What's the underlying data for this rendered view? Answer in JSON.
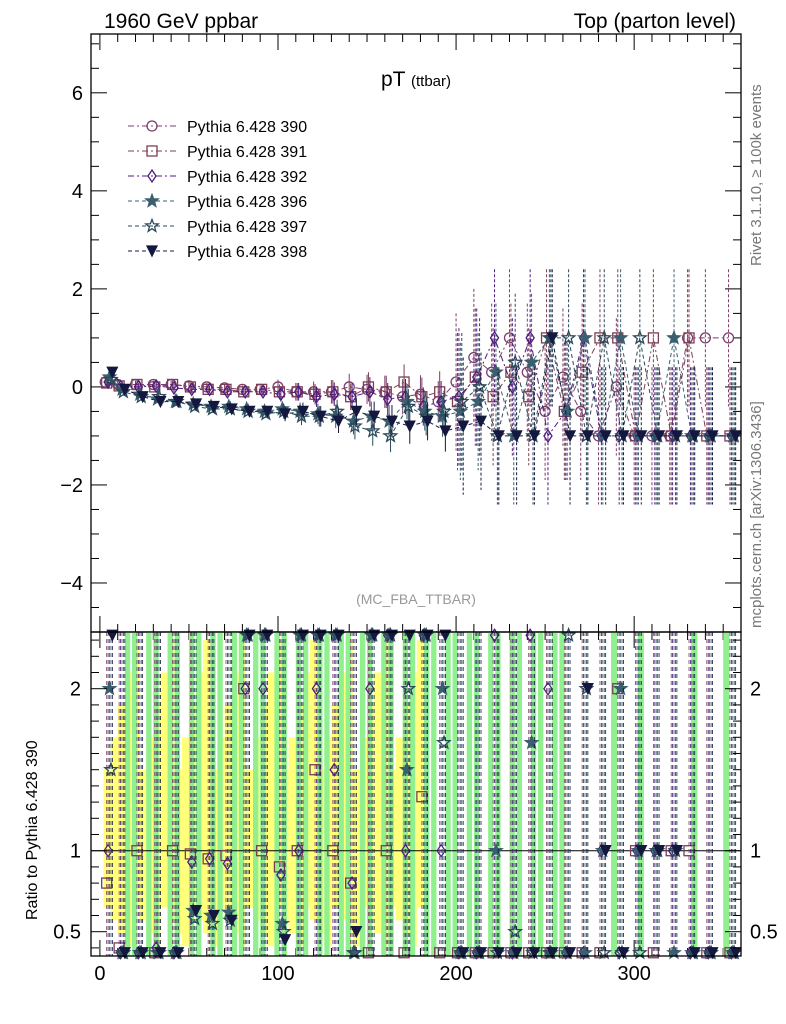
{
  "header": {
    "left": "1960 GeV ppbar",
    "right": "Top (parton level)"
  },
  "side_labels": {
    "rivet": "Rivet 3.1.10, ≥ 100k events",
    "mcplots": "mcplots.cern.ch [arXiv:1306.3436]"
  },
  "chart_data": {
    "type": "scatter",
    "title": "pT",
    "title_sub": "(ttbar)",
    "annotation": "(MC_FBA_TTBAR)",
    "xlabel": "",
    "ylabel": "",
    "xlim": [
      -5,
      360
    ],
    "ylim": [
      -5,
      7.2
    ],
    "x_ticks": [
      0,
      100,
      200,
      300
    ],
    "y_ticks": [
      -4,
      -2,
      0,
      2,
      4,
      6
    ],
    "legend_placement": "top-left",
    "series": [
      {
        "name": "Pythia 6.428 390",
        "color": "#7d3e6e",
        "marker": "circle-open",
        "line": "dash-dot",
        "x": [
          3,
          10,
          20,
          30,
          40,
          50,
          60,
          70,
          80,
          90,
          100,
          110,
          120,
          130,
          140,
          150,
          160,
          170,
          180,
          190,
          200,
          210,
          220,
          230,
          240,
          250,
          260,
          270,
          280,
          290,
          300,
          310,
          320,
          330,
          340,
          353
        ],
        "y": [
          0.1,
          0.05,
          0.05,
          0.05,
          0.05,
          0.02,
          0.0,
          -0.02,
          -0.05,
          -0.05,
          0.0,
          -0.1,
          -0.1,
          -0.1,
          0.0,
          -0.05,
          -0.1,
          -0.2,
          -0.15,
          -0.3,
          0.1,
          0.6,
          0.3,
          1.0,
          0.3,
          -0.5,
          0.2,
          -0.5,
          -1.0,
          0.0,
          -1.0,
          -1.0,
          -1.0,
          1.0,
          1.0,
          1.0
        ]
      },
      {
        "name": "Pythia 6.428 391",
        "color": "#7d3e54",
        "marker": "square-open",
        "line": "dash-dot",
        "x": [
          3,
          10,
          20,
          30,
          40,
          50,
          60,
          70,
          80,
          90,
          100,
          110,
          120,
          130,
          140,
          150,
          160,
          170,
          180,
          190,
          200,
          210,
          220,
          230,
          240,
          250,
          260,
          270,
          280,
          290,
          300,
          310,
          320,
          330,
          340,
          353
        ],
        "y": [
          0.08,
          0.02,
          0.05,
          0.0,
          0.05,
          0.0,
          -0.05,
          -0.05,
          -0.1,
          -0.05,
          -0.1,
          -0.1,
          -0.15,
          -0.1,
          -0.2,
          0.0,
          -0.1,
          0.1,
          -0.2,
          -0.1,
          -0.3,
          0.2,
          -0.2,
          0.3,
          -0.2,
          1.0,
          -0.5,
          0.3,
          1.0,
          1.0,
          -1.0,
          1.0,
          -1.0,
          1.0,
          -1.0,
          -1.0
        ]
      },
      {
        "name": "Pythia 6.428 392",
        "color": "#4d1a7f",
        "marker": "diamond-open",
        "line": "dash-dot",
        "x": [
          3,
          10,
          20,
          30,
          40,
          50,
          60,
          70,
          80,
          90,
          100,
          110,
          120,
          130,
          140,
          150,
          160,
          170,
          180,
          190,
          200,
          210,
          220,
          230,
          240,
          250,
          260,
          270,
          280,
          290,
          300,
          310,
          320,
          330,
          340,
          353
        ],
        "y": [
          0.1,
          0.0,
          0.0,
          0.02,
          -0.02,
          -0.05,
          -0.05,
          -0.1,
          -0.1,
          -0.1,
          -0.15,
          -0.1,
          -0.2,
          -0.15,
          -0.2,
          -0.1,
          -0.25,
          -0.2,
          -0.4,
          -0.3,
          -0.2,
          0.2,
          1.0,
          0.0,
          1.0,
          -1.0,
          -0.5,
          1.0,
          -1.0,
          -1.0,
          -1.0,
          -1.0,
          -1.0,
          -1.0,
          -1.0,
          -1.0
        ]
      },
      {
        "name": "Pythia 6.428 396",
        "color": "#3a5f6f",
        "marker": "star",
        "line": "dash",
        "x": [
          3,
          10,
          20,
          30,
          40,
          50,
          60,
          70,
          80,
          90,
          100,
          110,
          120,
          130,
          140,
          150,
          160,
          170,
          180,
          190,
          200,
          210,
          220,
          230,
          240,
          250,
          260,
          270,
          280,
          290,
          300,
          310,
          320,
          330,
          340,
          353
        ],
        "y": [
          0.2,
          -0.05,
          -0.15,
          -0.25,
          -0.3,
          -0.35,
          -0.4,
          -0.4,
          -0.45,
          -0.5,
          -0.45,
          -0.5,
          -0.55,
          -0.6,
          -0.7,
          -0.6,
          -0.7,
          -0.3,
          -0.5,
          -0.6,
          -0.5,
          -0.3,
          0.3,
          -1.0,
          0.5,
          1.0,
          -0.5,
          1.0,
          -1.0,
          1.0,
          -1.0,
          -1.0,
          1.0,
          -1.0,
          -1.0,
          -1.0
        ]
      },
      {
        "name": "Pythia 6.428 397",
        "color": "#2a4a5a",
        "marker": "star-open",
        "line": "dash",
        "x": [
          3,
          10,
          20,
          30,
          40,
          50,
          60,
          70,
          80,
          90,
          100,
          110,
          120,
          130,
          140,
          150,
          160,
          170,
          180,
          190,
          200,
          210,
          220,
          230,
          240,
          250,
          260,
          270,
          280,
          290,
          300,
          310,
          320,
          330,
          340,
          353
        ],
        "y": [
          0.15,
          -0.1,
          -0.2,
          -0.2,
          -0.3,
          -0.4,
          -0.45,
          -0.45,
          -0.5,
          -0.55,
          -0.5,
          -0.6,
          -0.6,
          -0.5,
          -0.8,
          -0.9,
          -1.0,
          -0.4,
          -0.6,
          -0.5,
          -0.3,
          0.0,
          -1.0,
          0.5,
          -1.0,
          1.0,
          1.0,
          -1.0,
          1.0,
          -1.0,
          1.0,
          -1.0,
          -1.0,
          -1.0,
          -1.0,
          -1.0
        ]
      },
      {
        "name": "Pythia 6.428 398",
        "color": "#14183f",
        "marker": "triangle-down",
        "line": "dash",
        "x": [
          3,
          10,
          20,
          30,
          40,
          50,
          60,
          70,
          80,
          90,
          100,
          110,
          120,
          130,
          140,
          150,
          160,
          170,
          180,
          190,
          200,
          210,
          220,
          230,
          240,
          250,
          260,
          270,
          280,
          290,
          300,
          310,
          320,
          330,
          340,
          353
        ],
        "y": [
          0.3,
          -0.05,
          -0.2,
          -0.3,
          -0.3,
          -0.35,
          -0.4,
          -0.45,
          -0.5,
          -0.5,
          -0.55,
          -0.5,
          -0.6,
          -0.7,
          -0.5,
          -0.6,
          -0.7,
          -0.8,
          -0.7,
          -0.9,
          -0.8,
          -0.7,
          -1.0,
          -1.0,
          -1.0,
          1.0,
          -1.0,
          -1.0,
          -1.0,
          -1.0,
          -1.0,
          -1.0,
          -1.0,
          -1.0,
          -1.0,
          -1.0
        ]
      }
    ],
    "ratio_panel": {
      "ylabel": "Ratio to Pythia 6.428 390",
      "ylim": [
        0.35,
        2.35
      ],
      "y_ticks": [
        0.5,
        1,
        2
      ],
      "reference_line": 1
    }
  }
}
